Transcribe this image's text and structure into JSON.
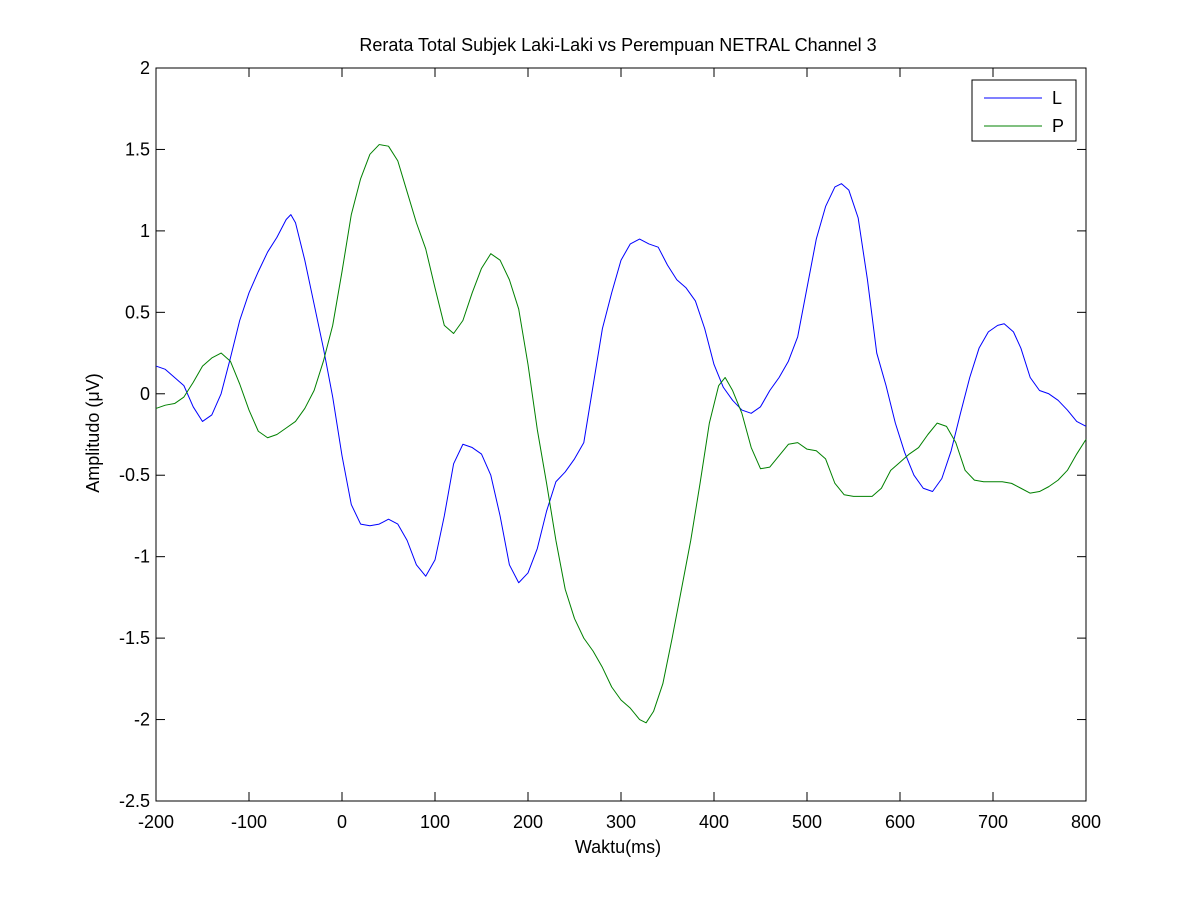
{
  "chart_data": {
    "type": "line",
    "title": "Rerata Total Subjek Laki-Laki vs Perempuan NETRAL Channel 3",
    "xlabel": "Waktu(ms)",
    "ylabel": "Amplitudo (μV)",
    "xlim": [
      -200,
      800
    ],
    "ylim": [
      -2.5,
      2
    ],
    "xticks": [
      -200,
      -100,
      0,
      100,
      200,
      300,
      400,
      500,
      600,
      700,
      800
    ],
    "yticks": [
      2,
      1.5,
      1,
      0.5,
      0,
      -0.5,
      -1,
      -1.5,
      -2,
      -2.5
    ],
    "xtick_labels": [
      "-200",
      "-100",
      "0",
      "100",
      "200",
      "300",
      "400",
      "500",
      "600",
      "700",
      "800"
    ],
    "ytick_labels": [
      "2",
      "1.5",
      "1",
      "0.5",
      "0",
      "-0.5",
      "-1",
      "-1.5",
      "-2",
      "-2.5"
    ],
    "grid": false,
    "legend_position": "top-right",
    "series": [
      {
        "name": "L",
        "color": "#0000ff",
        "points": [
          [
            -200,
            0.17
          ],
          [
            -190,
            0.15
          ],
          [
            -180,
            0.1
          ],
          [
            -170,
            0.05
          ],
          [
            -160,
            -0.08
          ],
          [
            -150,
            -0.17
          ],
          [
            -140,
            -0.13
          ],
          [
            -130,
            0.0
          ],
          [
            -120,
            0.22
          ],
          [
            -110,
            0.45
          ],
          [
            -100,
            0.62
          ],
          [
            -90,
            0.75
          ],
          [
            -80,
            0.87
          ],
          [
            -70,
            0.96
          ],
          [
            -60,
            1.07
          ],
          [
            -55,
            1.1
          ],
          [
            -50,
            1.05
          ],
          [
            -40,
            0.82
          ],
          [
            -30,
            0.55
          ],
          [
            -20,
            0.28
          ],
          [
            -10,
            -0.02
          ],
          [
            0,
            -0.38
          ],
          [
            10,
            -0.68
          ],
          [
            20,
            -0.8
          ],
          [
            30,
            -0.81
          ],
          [
            40,
            -0.8
          ],
          [
            50,
            -0.77
          ],
          [
            60,
            -0.8
          ],
          [
            70,
            -0.9
          ],
          [
            80,
            -1.05
          ],
          [
            90,
            -1.12
          ],
          [
            100,
            -1.02
          ],
          [
            110,
            -0.75
          ],
          [
            120,
            -0.43
          ],
          [
            130,
            -0.31
          ],
          [
            140,
            -0.33
          ],
          [
            150,
            -0.37
          ],
          [
            160,
            -0.5
          ],
          [
            170,
            -0.75
          ],
          [
            180,
            -1.05
          ],
          [
            190,
            -1.16
          ],
          [
            200,
            -1.1
          ],
          [
            210,
            -0.95
          ],
          [
            220,
            -0.72
          ],
          [
            230,
            -0.54
          ],
          [
            240,
            -0.48
          ],
          [
            250,
            -0.4
          ],
          [
            260,
            -0.3
          ],
          [
            270,
            0.05
          ],
          [
            280,
            0.4
          ],
          [
            290,
            0.62
          ],
          [
            300,
            0.82
          ],
          [
            310,
            0.92
          ],
          [
            320,
            0.95
          ],
          [
            330,
            0.92
          ],
          [
            340,
            0.9
          ],
          [
            350,
            0.79
          ],
          [
            360,
            0.7
          ],
          [
            370,
            0.65
          ],
          [
            380,
            0.57
          ],
          [
            390,
            0.4
          ],
          [
            400,
            0.18
          ],
          [
            410,
            0.04
          ],
          [
            420,
            -0.04
          ],
          [
            430,
            -0.1
          ],
          [
            440,
            -0.12
          ],
          [
            450,
            -0.08
          ],
          [
            460,
            0.02
          ],
          [
            470,
            0.1
          ],
          [
            480,
            0.2
          ],
          [
            490,
            0.35
          ],
          [
            500,
            0.65
          ],
          [
            510,
            0.95
          ],
          [
            520,
            1.15
          ],
          [
            530,
            1.27
          ],
          [
            537,
            1.29
          ],
          [
            545,
            1.25
          ],
          [
            555,
            1.08
          ],
          [
            565,
            0.7
          ],
          [
            575,
            0.25
          ],
          [
            585,
            0.05
          ],
          [
            595,
            -0.18
          ],
          [
            605,
            -0.36
          ],
          [
            615,
            -0.5
          ],
          [
            625,
            -0.58
          ],
          [
            635,
            -0.6
          ],
          [
            645,
            -0.52
          ],
          [
            655,
            -0.35
          ],
          [
            665,
            -0.12
          ],
          [
            675,
            0.1
          ],
          [
            685,
            0.28
          ],
          [
            695,
            0.38
          ],
          [
            705,
            0.42
          ],
          [
            712,
            0.43
          ],
          [
            722,
            0.38
          ],
          [
            730,
            0.28
          ],
          [
            740,
            0.1
          ],
          [
            750,
            0.02
          ],
          [
            760,
            0.0
          ],
          [
            770,
            -0.04
          ],
          [
            780,
            -0.1
          ],
          [
            790,
            -0.17
          ],
          [
            800,
            -0.2
          ]
        ]
      },
      {
        "name": "P",
        "color": "#008000",
        "points": [
          [
            -200,
            -0.09
          ],
          [
            -190,
            -0.07
          ],
          [
            -180,
            -0.06
          ],
          [
            -170,
            -0.02
          ],
          [
            -160,
            0.07
          ],
          [
            -150,
            0.17
          ],
          [
            -140,
            0.22
          ],
          [
            -130,
            0.25
          ],
          [
            -120,
            0.2
          ],
          [
            -110,
            0.06
          ],
          [
            -100,
            -0.1
          ],
          [
            -90,
            -0.23
          ],
          [
            -80,
            -0.27
          ],
          [
            -70,
            -0.25
          ],
          [
            -60,
            -0.21
          ],
          [
            -50,
            -0.17
          ],
          [
            -40,
            -0.09
          ],
          [
            -30,
            0.02
          ],
          [
            -20,
            0.2
          ],
          [
            -10,
            0.42
          ],
          [
            0,
            0.75
          ],
          [
            10,
            1.1
          ],
          [
            20,
            1.32
          ],
          [
            30,
            1.47
          ],
          [
            40,
            1.53
          ],
          [
            50,
            1.52
          ],
          [
            60,
            1.43
          ],
          [
            70,
            1.24
          ],
          [
            80,
            1.05
          ],
          [
            90,
            0.89
          ],
          [
            100,
            0.65
          ],
          [
            110,
            0.42
          ],
          [
            120,
            0.37
          ],
          [
            130,
            0.45
          ],
          [
            140,
            0.62
          ],
          [
            150,
            0.77
          ],
          [
            160,
            0.86
          ],
          [
            170,
            0.82
          ],
          [
            180,
            0.7
          ],
          [
            190,
            0.52
          ],
          [
            200,
            0.18
          ],
          [
            210,
            -0.22
          ],
          [
            220,
            -0.55
          ],
          [
            230,
            -0.9
          ],
          [
            240,
            -1.2
          ],
          [
            250,
            -1.38
          ],
          [
            260,
            -1.5
          ],
          [
            270,
            -1.58
          ],
          [
            280,
            -1.68
          ],
          [
            290,
            -1.8
          ],
          [
            300,
            -1.88
          ],
          [
            310,
            -1.93
          ],
          [
            320,
            -2.0
          ],
          [
            327,
            -2.02
          ],
          [
            335,
            -1.95
          ],
          [
            345,
            -1.78
          ],
          [
            355,
            -1.5
          ],
          [
            365,
            -1.2
          ],
          [
            375,
            -0.9
          ],
          [
            385,
            -0.55
          ],
          [
            395,
            -0.18
          ],
          [
            405,
            0.05
          ],
          [
            412,
            0.1
          ],
          [
            420,
            0.02
          ],
          [
            430,
            -0.12
          ],
          [
            440,
            -0.33
          ],
          [
            450,
            -0.46
          ],
          [
            460,
            -0.45
          ],
          [
            470,
            -0.38
          ],
          [
            480,
            -0.31
          ],
          [
            490,
            -0.3
          ],
          [
            500,
            -0.34
          ],
          [
            510,
            -0.35
          ],
          [
            520,
            -0.4
          ],
          [
            530,
            -0.55
          ],
          [
            540,
            -0.62
          ],
          [
            550,
            -0.63
          ],
          [
            560,
            -0.63
          ],
          [
            570,
            -0.63
          ],
          [
            580,
            -0.58
          ],
          [
            590,
            -0.47
          ],
          [
            600,
            -0.42
          ],
          [
            610,
            -0.37
          ],
          [
            620,
            -0.33
          ],
          [
            630,
            -0.25
          ],
          [
            640,
            -0.18
          ],
          [
            650,
            -0.2
          ],
          [
            660,
            -0.3
          ],
          [
            670,
            -0.47
          ],
          [
            680,
            -0.53
          ],
          [
            690,
            -0.54
          ],
          [
            700,
            -0.54
          ],
          [
            710,
            -0.54
          ],
          [
            720,
            -0.55
          ],
          [
            730,
            -0.58
          ],
          [
            740,
            -0.61
          ],
          [
            750,
            -0.6
          ],
          [
            760,
            -0.57
          ],
          [
            770,
            -0.53
          ],
          [
            780,
            -0.47
          ],
          [
            790,
            -0.37
          ],
          [
            800,
            -0.28
          ]
        ]
      }
    ]
  }
}
